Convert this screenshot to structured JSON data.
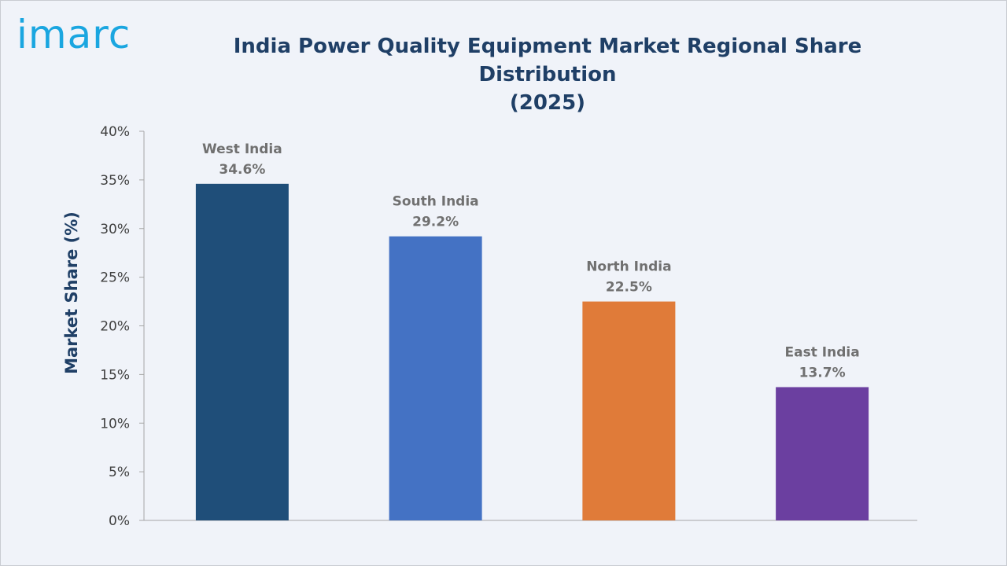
{
  "header": {
    "logo_text": "imarc",
    "title_line1": "India Power Quality Equipment Market Regional Share Distribution",
    "title_line2": "(2025)"
  },
  "chart_data": {
    "type": "bar",
    "title": "India Power Quality Equipment Market Regional Share Distribution (2025)",
    "categories": [
      "West India",
      "South India",
      "North India",
      "East India"
    ],
    "values": [
      34.6,
      29.2,
      22.5,
      13.7
    ],
    "value_labels": [
      "34.6%",
      "29.2%",
      "22.5%",
      "13.7%"
    ],
    "colors": [
      "#1f4e79",
      "#4472c4",
      "#e07b39",
      "#6b3fa0"
    ],
    "xlabel": "",
    "ylabel": "Market Share (%)",
    "ylim": [
      0,
      40
    ],
    "yticks": [
      0,
      5,
      10,
      15,
      20,
      25,
      30,
      35,
      40
    ],
    "ytick_labels": [
      "0%",
      "5%",
      "10%",
      "15%",
      "20%",
      "25%",
      "30%",
      "35%",
      "40%"
    ],
    "grid": false,
    "legend": "none"
  }
}
